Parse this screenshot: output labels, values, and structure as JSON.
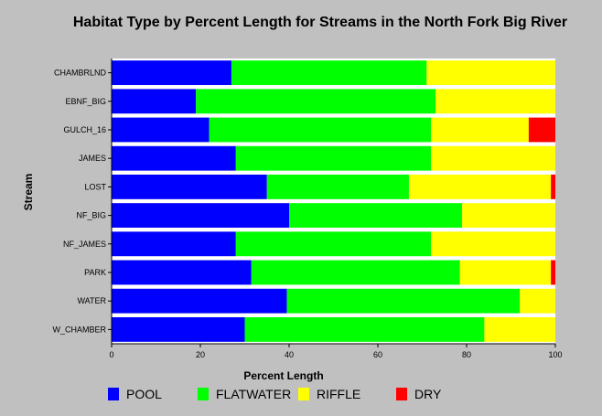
{
  "chart_data": {
    "type": "bar",
    "orientation": "horizontal",
    "stacked": true,
    "title": "Habitat Type by Percent Length for Streams in the North Fork Big River",
    "xlabel": "Percent Length",
    "ylabel": "Stream",
    "xlim": [
      0,
      100
    ],
    "xticks": [
      "0",
      "20",
      "40",
      "60",
      "80",
      "100"
    ],
    "categories": [
      "CHAMBRLND",
      "EBNF_BIG",
      "GULCH_16",
      "JAMES",
      "LOST",
      "NF_BIG",
      "NF_JAMES",
      "PARK",
      "WATER",
      "W_CHAMBER"
    ],
    "series": [
      {
        "name": "POOL",
        "color": "#0000ff",
        "values": [
          27,
          19,
          22,
          28,
          35,
          40,
          28,
          31.5,
          39.5,
          30
        ]
      },
      {
        "name": "FLATWATER",
        "color": "#00ff00",
        "values": [
          44,
          54,
          50,
          44,
          32,
          39,
          44,
          47,
          52.5,
          54
        ]
      },
      {
        "name": "RIFFLE",
        "color": "#ffff00",
        "values": [
          29,
          27,
          22,
          28,
          32,
          21,
          28,
          20.5,
          8,
          16
        ]
      },
      {
        "name": "DRY",
        "color": "#ff0000",
        "values": [
          0,
          0,
          6,
          0,
          1,
          0,
          0,
          1,
          0,
          0
        ]
      }
    ],
    "grid": false,
    "legend_position": "bottom"
  }
}
